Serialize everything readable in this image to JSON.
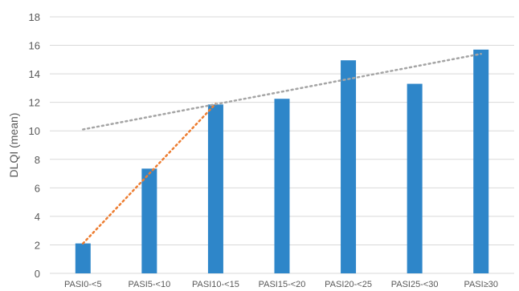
{
  "chart_data": {
    "type": "bar",
    "title": "",
    "xlabel": "",
    "ylabel": "DLQI (mean)",
    "ylim": [
      0,
      18
    ],
    "ytick_step": 2,
    "grid": true,
    "categories": [
      "PASI0-<5",
      "PASI5-<10",
      "PASI10-<15",
      "PASI15-<20",
      "PASI20-<25",
      "PASI25-<30",
      "PASI≥30"
    ],
    "series": [
      {
        "values": [
          2.1,
          7.35,
          11.85,
          12.25,
          14.95,
          13.3,
          15.7
        ],
        "color": "#2e86c9"
      }
    ],
    "trendlines": [
      {
        "from_category": "PASI0-<5",
        "to_category": "PASI10-<15",
        "y_start": 2.1,
        "y_end": 11.9,
        "color": "#ed7d31",
        "style": "dotted"
      },
      {
        "from_category": "PASI0-<5",
        "to_category": "PASI≥30",
        "y_start": 10.1,
        "y_end": 15.4,
        "color": "#a5a5a5",
        "style": "dotted"
      }
    ],
    "colors": {
      "grid": "#d9d9d9",
      "text": "#595959"
    }
  }
}
